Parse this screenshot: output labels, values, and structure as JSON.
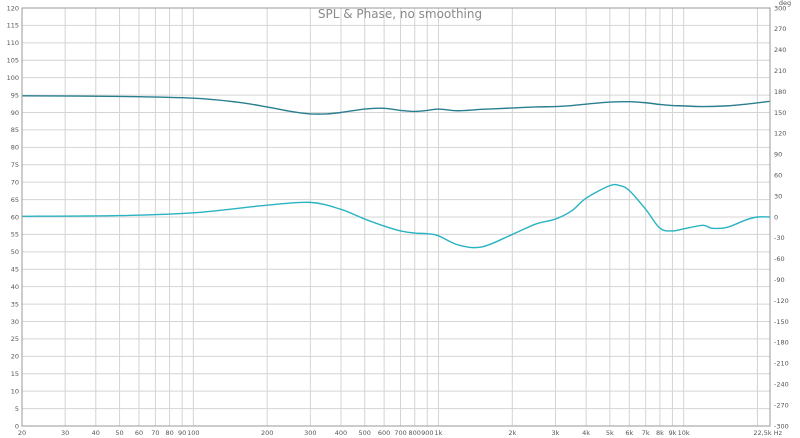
{
  "chart_data": {
    "type": "line",
    "title": "SPL & Phase, no smoothing",
    "x_scale": "log",
    "xlim": [
      20,
      22500
    ],
    "x_ticks": [
      {
        "value": 20,
        "label": "20"
      },
      {
        "value": 30,
        "label": "30"
      },
      {
        "value": 40,
        "label": "40"
      },
      {
        "value": 50,
        "label": "50"
      },
      {
        "value": 60,
        "label": "60"
      },
      {
        "value": 70,
        "label": "70"
      },
      {
        "value": 80,
        "label": "80"
      },
      {
        "value": 90,
        "label": "90"
      },
      {
        "value": 100,
        "label": "100"
      },
      {
        "value": 200,
        "label": "200"
      },
      {
        "value": 300,
        "label": "300"
      },
      {
        "value": 400,
        "label": "400"
      },
      {
        "value": 500,
        "label": "500"
      },
      {
        "value": 600,
        "label": "600"
      },
      {
        "value": 700,
        "label": "700"
      },
      {
        "value": 800,
        "label": "800"
      },
      {
        "value": 900,
        "label": "900"
      },
      {
        "value": 1000,
        "label": "1k"
      },
      {
        "value": 2000,
        "label": "2k"
      },
      {
        "value": 3000,
        "label": "3k"
      },
      {
        "value": 4000,
        "label": "4k"
      },
      {
        "value": 5000,
        "label": "5k"
      },
      {
        "value": 6000,
        "label": "6k"
      },
      {
        "value": 7000,
        "label": "7k"
      },
      {
        "value": 8000,
        "label": "8k"
      },
      {
        "value": 9000,
        "label": "9k"
      },
      {
        "value": 10000,
        "label": "10k"
      },
      {
        "value": 22500,
        "label": "22,5k Hz"
      }
    ],
    "ylim_left": [
      0,
      120
    ],
    "y_ticks_left": [
      "0",
      "5",
      "10",
      "15",
      "20",
      "25",
      "30",
      "35",
      "40",
      "45",
      "50",
      "55",
      "60",
      "65",
      "70",
      "75",
      "80",
      "85",
      "90",
      "95",
      "100",
      "105",
      "110",
      "115",
      "120"
    ],
    "ylim_right": [
      -300,
      300
    ],
    "y_ticks_right": [
      "-300",
      "-270",
      "-240",
      "-210",
      "-180",
      "-150",
      "-120",
      "-90",
      "-60",
      "-30",
      "0",
      "30",
      "60",
      "90",
      "120",
      "150",
      "180",
      "210",
      "240",
      "270",
      "300"
    ],
    "right_unit": "deg",
    "grid": true,
    "series": [
      {
        "axis": "left",
        "color": "#2a7f8e",
        "x": [
          20,
          50,
          100,
          150,
          200,
          250,
          300,
          350,
          400,
          500,
          600,
          700,
          800,
          900,
          1000,
          1200,
          1500,
          2000,
          2500,
          3000,
          3500,
          4000,
          5000,
          6000,
          7000,
          8000,
          9000,
          10000,
          12000,
          15000,
          18000,
          22500
        ],
        "values": [
          94.8,
          94.6,
          94.1,
          93.0,
          91.6,
          90.3,
          89.6,
          89.6,
          90.0,
          91.0,
          91.2,
          90.6,
          90.3,
          90.6,
          91.0,
          90.5,
          90.9,
          91.3,
          91.6,
          91.7,
          92.0,
          92.4,
          93.0,
          93.1,
          92.8,
          92.3,
          92.0,
          91.9,
          91.7,
          91.9,
          92.4,
          93.2
        ]
      },
      {
        "axis": "right",
        "color": "#2ab3c2",
        "x": [
          20,
          50,
          100,
          200,
          300,
          400,
          500,
          600,
          700,
          800,
          900,
          1000,
          1200,
          1500,
          2000,
          2500,
          3000,
          3500,
          4000,
          5000,
          5500,
          6000,
          7000,
          8000,
          9000,
          10000,
          12000,
          13000,
          15000,
          18000,
          20000,
          22500
        ],
        "values": [
          1,
          2,
          6,
          17,
          21,
          11,
          -3,
          -13,
          -20,
          -23,
          -24,
          -27,
          -40,
          -43,
          -25,
          -10,
          -3,
          9,
          27,
          45,
          45,
          38,
          11,
          -16,
          -20,
          -17,
          -12,
          -16,
          -15,
          -4,
          0,
          0
        ]
      }
    ]
  }
}
